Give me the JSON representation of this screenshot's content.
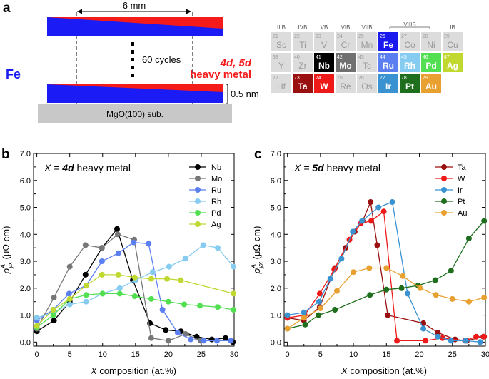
{
  "panel_a": {
    "label": "a",
    "distance": "6 mm",
    "cycles": "60 cycles",
    "fe": "Fe",
    "hm_line1": "4d, 5d",
    "hm_line2": "heavy metal",
    "thickness": "0.5 nm",
    "substrate": "MgO(100) sub.",
    "colors": {
      "fe": "#1b1bf5",
      "hm": "#f51b1b",
      "substrate": "#c8c8c8"
    }
  },
  "periodic_table": {
    "groups": [
      "IIIB",
      "IVB",
      "VB",
      "VIB",
      "VIIB",
      "VIIIB",
      "IB"
    ],
    "cells": [
      {
        "num": "21",
        "sym": "Sc",
        "color": "#dcdcdc",
        "dark": false
      },
      {
        "num": "22",
        "sym": "Ti",
        "color": "#dcdcdc",
        "dark": false
      },
      {
        "num": "23",
        "sym": "V",
        "color": "#dcdcdc",
        "dark": false
      },
      {
        "num": "24",
        "sym": "Cr",
        "color": "#dcdcdc",
        "dark": false
      },
      {
        "num": "25",
        "sym": "Mn",
        "color": "#dcdcdc",
        "dark": false
      },
      {
        "num": "26",
        "sym": "Fe",
        "color": "#1a1aee",
        "dark": true
      },
      {
        "num": "27",
        "sym": "Co",
        "color": "#dcdcdc",
        "dark": false
      },
      {
        "num": "28",
        "sym": "Ni",
        "color": "#dcdcdc",
        "dark": false
      },
      {
        "num": "29",
        "sym": "Cu",
        "color": "#dcdcdc",
        "dark": false
      },
      {
        "num": "39",
        "sym": "Y",
        "color": "#dcdcdc",
        "dark": false
      },
      {
        "num": "40",
        "sym": "Zr",
        "color": "#dcdcdc",
        "dark": false
      },
      {
        "num": "41",
        "sym": "Nb",
        "color": "#000000",
        "dark": true
      },
      {
        "num": "42",
        "sym": "Mo",
        "color": "#707070",
        "dark": true
      },
      {
        "num": "43",
        "sym": "Tc",
        "color": "#dcdcdc",
        "dark": false
      },
      {
        "num": "44",
        "sym": "Ru",
        "color": "#5b7ff0",
        "dark": true
      },
      {
        "num": "45",
        "sym": "Rh",
        "color": "#86ccf0",
        "dark": true
      },
      {
        "num": "46",
        "sym": "Pd",
        "color": "#52e052",
        "dark": true
      },
      {
        "num": "47",
        "sym": "Ag",
        "color": "#c0d830",
        "dark": true
      },
      {
        "num": "72",
        "sym": "Hf",
        "color": "#dcdcdc",
        "dark": false
      },
      {
        "num": "73",
        "sym": "Ta",
        "color": "#9a1010",
        "dark": true
      },
      {
        "num": "74",
        "sym": "W",
        "color": "#ee1a1a",
        "dark": true
      },
      {
        "num": "75",
        "sym": "Re",
        "color": "#dcdcdc",
        "dark": false
      },
      {
        "num": "76",
        "sym": "Os",
        "color": "#dcdcdc",
        "dark": false
      },
      {
        "num": "77",
        "sym": "Ir",
        "color": "#3a92d0",
        "dark": true
      },
      {
        "num": "78",
        "sym": "Pt",
        "color": "#1e6e1e",
        "dark": true
      },
      {
        "num": "79",
        "sym": "Au",
        "color": "#e8a030",
        "dark": true
      }
    ]
  },
  "chart_data": [
    {
      "type": "line",
      "panel": "b",
      "title_prefix": "X = ",
      "title_bold": "4d",
      "title_suffix": " heavy metal",
      "xlabel_var": "X",
      "xlabel_rest": " composition (at.%)",
      "ylabel_sym": "ρ",
      "ylabel_sup": "A",
      "ylabel_sub": "yx",
      "ylabel_unit": " (μΩ cm)",
      "xlim": [
        -0.5,
        30
      ],
      "ylim": [
        -0.15,
        7.0
      ],
      "xticks": [
        "0",
        "5",
        "10",
        "15",
        "20",
        "25",
        "30"
      ],
      "yticks": [
        "0.0",
        "1.0",
        "2.0",
        "3.0",
        "4.0",
        "5.0",
        "6.0",
        "7.0"
      ],
      "series": [
        {
          "name": "Nb",
          "color": "#000000",
          "points": [
            [
              0,
              0.4
            ],
            [
              2.6,
              0.8
            ],
            [
              5,
              1.5
            ],
            [
              7.4,
              2.5
            ],
            [
              9.9,
              3.5
            ],
            [
              12.2,
              4.2
            ],
            [
              14.6,
              2.3
            ],
            [
              17.2,
              0.7
            ],
            [
              19.6,
              0.45
            ],
            [
              21.9,
              0.4
            ],
            [
              24.3,
              0.2
            ],
            [
              26.6,
              0.1
            ],
            [
              28.7,
              0.15
            ],
            [
              29.8,
              0.0
            ]
          ]
        },
        {
          "name": "Mo",
          "color": "#777777",
          "points": [
            [
              0,
              0.5
            ],
            [
              2.6,
              1.65
            ],
            [
              5,
              2.8
            ],
            [
              7.4,
              3.6
            ],
            [
              9.9,
              3.5
            ],
            [
              12.3,
              4.0
            ],
            [
              14.8,
              3.8
            ],
            [
              17.4,
              0.15
            ],
            [
              20,
              0.05
            ],
            [
              22.6,
              0.3
            ],
            [
              24.9,
              0.05
            ]
          ]
        },
        {
          "name": "Ru",
          "color": "#5b7ff0",
          "points": [
            [
              0,
              0.8
            ],
            [
              2.5,
              1.2
            ],
            [
              4.9,
              1.8
            ],
            [
              7.5,
              2.1
            ],
            [
              9.9,
              3.0
            ],
            [
              12.4,
              3.3
            ],
            [
              14.7,
              3.7
            ],
            [
              17,
              3.65
            ],
            [
              19.1,
              1.2
            ],
            [
              21.4,
              0.35
            ],
            [
              23.4,
              0.1
            ],
            [
              25.4,
              0.05
            ],
            [
              27.4,
              0.05
            ],
            [
              29.5,
              0.05
            ]
          ]
        },
        {
          "name": "Rh",
          "color": "#86ccf0",
          "points": [
            [
              0,
              0.9
            ],
            [
              2.5,
              1.1
            ],
            [
              5,
              1.4
            ],
            [
              7.5,
              1.5
            ],
            [
              10,
              1.8
            ],
            [
              12.6,
              2.0
            ],
            [
              15,
              2.3
            ],
            [
              17.6,
              2.6
            ],
            [
              20.1,
              2.8
            ],
            [
              22.6,
              3.1
            ],
            [
              25.3,
              3.6
            ],
            [
              27.5,
              3.5
            ],
            [
              29.9,
              2.8
            ]
          ]
        },
        {
          "name": "Pd",
          "color": "#52e052",
          "points": [
            [
              0,
              0.55
            ],
            [
              2.5,
              1.0
            ],
            [
              5,
              1.6
            ],
            [
              7.5,
              1.75
            ],
            [
              10,
              1.8
            ],
            [
              12.6,
              1.8
            ],
            [
              14.9,
              1.7
            ],
            [
              17.4,
              1.6
            ],
            [
              20,
              1.5
            ],
            [
              22.4,
              1.4
            ],
            [
              24.8,
              1.35
            ],
            [
              27.5,
              1.3
            ],
            [
              29.9,
              1.2
            ]
          ]
        },
        {
          "name": "Ag",
          "color": "#c0d830",
          "points": [
            [
              0,
              0.6
            ],
            [
              2.5,
              1.2
            ],
            [
              5,
              1.6
            ],
            [
              7.5,
              2.1
            ],
            [
              9.9,
              2.5
            ],
            [
              12.4,
              2.5
            ],
            [
              14.9,
              2.4
            ],
            [
              17.4,
              2.35
            ],
            [
              19.8,
              2.35
            ],
            [
              21.9,
              2.3
            ],
            [
              29.9,
              1.8
            ]
          ]
        }
      ]
    },
    {
      "type": "line",
      "panel": "c",
      "title_prefix": "X = ",
      "title_bold": "5d",
      "title_suffix": " heavy metal",
      "xlabel_var": "X",
      "xlabel_rest": " composition (at.%)",
      "ylabel_sym": "ρ",
      "ylabel_sup": "A",
      "ylabel_sub": "yx",
      "ylabel_unit": " (μΩ cm)",
      "xlim": [
        -0.5,
        30
      ],
      "ylim": [
        -0.15,
        7.0
      ],
      "xticks": [
        "0",
        "5",
        "10",
        "15",
        "20",
        "25",
        "30"
      ],
      "yticks": [
        "0.0",
        "1.0",
        "2.0",
        "3.0",
        "4.0",
        "5.0",
        "6.0",
        "7.0"
      ],
      "series": [
        {
          "name": "Ta",
          "color": "#9a1010",
          "points": [
            [
              0,
              0.9
            ],
            [
              2.5,
              0.8
            ],
            [
              4.9,
              1.3
            ],
            [
              7.2,
              2.75
            ],
            [
              8.8,
              3.5
            ],
            [
              10.2,
              4.1
            ],
            [
              11.4,
              4.5
            ],
            [
              12.6,
              5.2
            ],
            [
              13.6,
              3.6
            ],
            [
              15.2,
              1.0
            ],
            [
              20.6,
              0.7
            ],
            [
              22.8,
              0.35
            ],
            [
              25.4,
              0.1
            ],
            [
              27.2,
              0.05
            ],
            [
              29.7,
              0.2
            ]
          ]
        },
        {
          "name": "W",
          "color": "#ee1a1a",
          "points": [
            [
              0,
              0.9
            ],
            [
              2.6,
              1.0
            ],
            [
              4.9,
              1.8
            ],
            [
              7.1,
              2.7
            ],
            [
              9.4,
              3.8
            ],
            [
              11.1,
              4.4
            ],
            [
              12.7,
              4.5
            ],
            [
              14.6,
              4.85
            ],
            [
              16.6,
              0.05
            ],
            [
              20.9,
              0.05
            ],
            [
              23.5,
              0.15
            ],
            [
              26.9,
              0.05
            ],
            [
              28.6,
              0.2
            ],
            [
              29.8,
              0.2
            ]
          ]
        },
        {
          "name": "Ir",
          "color": "#3a92d0",
          "points": [
            [
              0,
              1.0
            ],
            [
              2.5,
              1.1
            ],
            [
              4.8,
              1.5
            ],
            [
              6.5,
              2.35
            ],
            [
              8.2,
              3.1
            ],
            [
              9.9,
              4.1
            ],
            [
              11.3,
              4.5
            ],
            [
              13.8,
              5.0
            ],
            [
              15.9,
              5.2
            ],
            [
              18.2,
              1.8
            ],
            [
              20.6,
              0.5
            ],
            [
              22.8,
              0.2
            ],
            [
              24.8,
              0.05
            ],
            [
              27,
              0.05
            ],
            [
              29.2,
              0.0
            ]
          ]
        },
        {
          "name": "Pt",
          "color": "#1e6e1e",
          "points": [
            [
              0,
              0.5
            ],
            [
              2.7,
              0.65
            ],
            [
              4.7,
              1.0
            ],
            [
              7.2,
              1.2
            ],
            [
              12.5,
              1.75
            ],
            [
              15,
              1.95
            ],
            [
              17.3,
              2.0
            ],
            [
              19.8,
              2.1
            ],
            [
              22.4,
              2.3
            ],
            [
              24.8,
              2.65
            ],
            [
              27.5,
              3.85
            ],
            [
              29.8,
              4.5
            ]
          ]
        },
        {
          "name": "Au",
          "color": "#e8a030",
          "points": [
            [
              0,
              0.5
            ],
            [
              2.5,
              0.9
            ],
            [
              5,
              1.25
            ],
            [
              7.5,
              1.9
            ],
            [
              10,
              2.6
            ],
            [
              12.4,
              2.75
            ],
            [
              15,
              2.75
            ],
            [
              17.5,
              2.45
            ],
            [
              20.1,
              2.0
            ],
            [
              22.5,
              1.75
            ],
            [
              25,
              1.6
            ],
            [
              27.5,
              1.5
            ],
            [
              29.8,
              1.65
            ]
          ]
        }
      ]
    }
  ]
}
